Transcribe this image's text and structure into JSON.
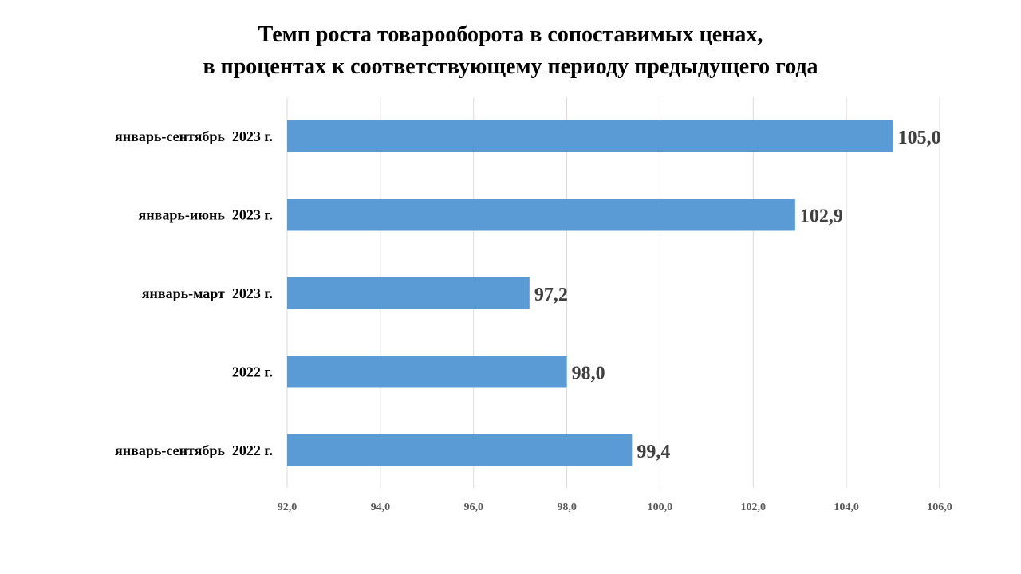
{
  "chart_data": {
    "type": "bar",
    "orientation": "horizontal",
    "title": {
      "line1": "Темп роста товарооборота в сопоставимых ценах,",
      "line2": "в процентах к соответствующему периоду предыдущего года"
    },
    "categories": [
      "январь-сентябрь  2023 г.",
      "январь-июнь  2023 г.",
      "январь-март  2023 г.",
      "2022 г.",
      "январь-сентябрь  2022 г."
    ],
    "values": [
      105.0,
      102.9,
      97.2,
      98.0,
      99.4
    ],
    "value_labels": [
      "105,0",
      "102,9",
      "97,2",
      "98,0",
      "99,4"
    ],
    "xlim": [
      92,
      106
    ],
    "x_ticks": [
      92,
      94,
      96,
      98,
      100,
      102,
      104,
      106
    ],
    "x_tick_labels": [
      "92,0",
      "94,0",
      "96,0",
      "98,0",
      "100,0",
      "102,0",
      "104,0",
      "106,0"
    ],
    "xlabel": "",
    "ylabel": "",
    "grid": true,
    "legend": "none",
    "colors": {
      "bar": "#5b9bd5",
      "grid": "#d9d9d9",
      "tick_text": "#595959",
      "value_text": "#404040"
    }
  }
}
